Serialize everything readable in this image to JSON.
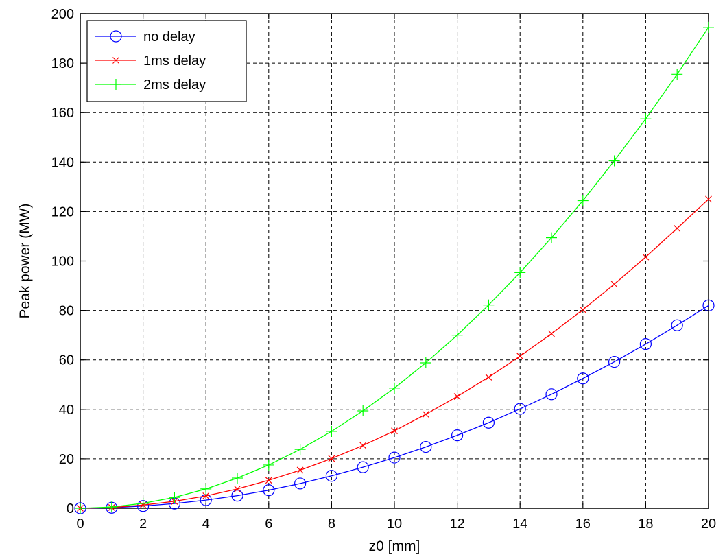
{
  "chart_data": {
    "type": "line",
    "title": "",
    "xlabel": "z0 [mm]",
    "ylabel": "Peak power (MW)",
    "xlim": [
      0,
      20
    ],
    "ylim": [
      0,
      200
    ],
    "xticks": [
      0,
      2,
      4,
      6,
      8,
      10,
      12,
      14,
      16,
      18,
      20
    ],
    "yticks": [
      0,
      20,
      40,
      60,
      80,
      100,
      120,
      140,
      160,
      180,
      200
    ],
    "grid": true,
    "grid_style": "dashed",
    "legend_position": "top-left",
    "x": [
      0,
      1,
      2,
      3,
      4,
      5,
      6,
      7,
      8,
      9,
      10,
      11,
      12,
      13,
      14,
      15,
      16,
      17,
      18,
      19,
      20
    ],
    "series": [
      {
        "name": "no delay",
        "color": "#0000ff",
        "marker": "circle",
        "values": [
          0,
          0.2,
          0.9,
          1.9,
          3.3,
          5.1,
          7.3,
          10.0,
          13.1,
          16.6,
          20.5,
          24.8,
          29.5,
          34.6,
          40.2,
          46.1,
          52.5,
          59.2,
          66.4,
          74.0,
          82.0
        ]
      },
      {
        "name": "1ms delay",
        "color": "#ff0000",
        "marker": "x",
        "values": [
          0,
          0.3,
          1.3,
          2.8,
          5.0,
          7.8,
          11.3,
          15.4,
          20.1,
          25.4,
          31.3,
          38.0,
          45.2,
          53.0,
          61.5,
          70.6,
          80.3,
          90.6,
          101.6,
          113.2,
          125.0
        ]
      },
      {
        "name": "2ms delay",
        "color": "#00ff00",
        "marker": "plus",
        "values": [
          0,
          0.5,
          2.0,
          4.4,
          7.8,
          12.2,
          17.5,
          23.8,
          31.1,
          39.4,
          48.6,
          58.8,
          70.0,
          82.2,
          95.3,
          109.4,
          124.4,
          140.5,
          157.5,
          175.5,
          194.5
        ]
      }
    ]
  }
}
